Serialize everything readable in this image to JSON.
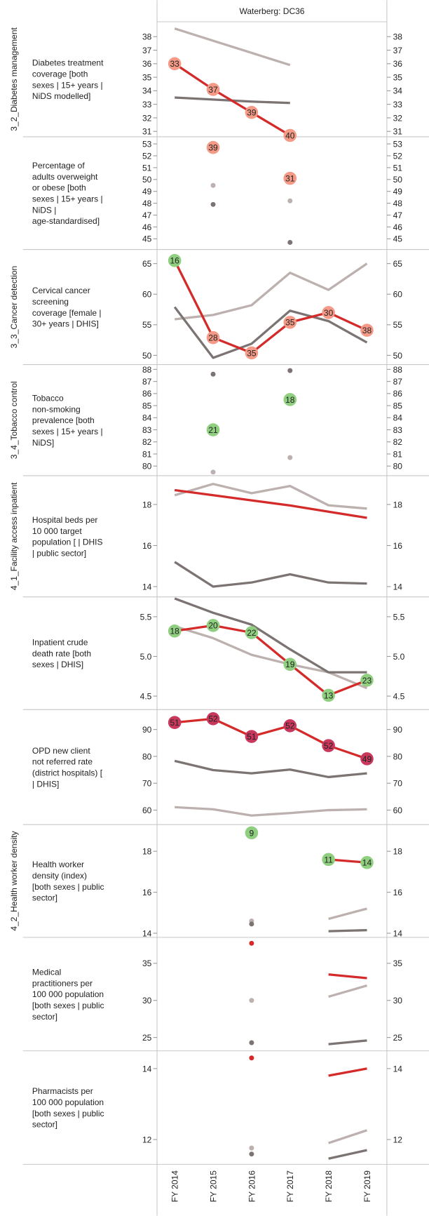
{
  "header": "Waterberg: DC36",
  "categories": [
    "FY 2014",
    "FY 2015",
    "FY 2016",
    "FY 2017",
    "FY 2018",
    "FY 2019"
  ],
  "chart_data": [
    {
      "type": "line",
      "group": "3_2_Diabetes management",
      "title": [
        "Diabetes treatment",
        "coverage [both",
        "sexes | 15+ years |",
        "NiDS modelled]"
      ],
      "ylim": [
        30.6,
        39.1
      ],
      "yticks": [
        31,
        32,
        33,
        34,
        35,
        36,
        37,
        38
      ],
      "series": [
        {
          "color": "#bcb1ae",
          "values": [
            38.6,
            37.7,
            36.8,
            35.9,
            null,
            null
          ]
        },
        {
          "color": "#7b7472",
          "values": [
            33.5,
            33.35,
            33.2,
            33.1,
            null,
            null
          ]
        },
        {
          "color": "#d42a2a",
          "values": [
            36.0,
            34.1,
            32.4,
            30.7,
            null,
            null
          ],
          "point_labels": [
            33,
            37,
            39,
            40,
            null,
            null
          ],
          "marker_colors": [
            "#f49a87",
            "#f49a87",
            "#f49a87",
            "#f49a87",
            null,
            null
          ]
        }
      ]
    },
    {
      "type": "line",
      "title": [
        "Percentage of",
        "adults overweight",
        "or obese [both",
        "sexes | 15+ years |",
        "NiDS |",
        "age-standardised]"
      ],
      "ylim": [
        44.1,
        53.6
      ],
      "yticks": [
        45,
        46,
        47,
        48,
        49,
        50,
        51,
        52,
        53
      ],
      "series": [
        {
          "color": "#bcb1ae",
          "values": [
            null,
            49.5,
            null,
            48.2,
            null,
            null
          ]
        },
        {
          "color": "#7b7472",
          "values": [
            null,
            47.9,
            null,
            44.7,
            null,
            null
          ]
        },
        {
          "color": "#d42a2a",
          "values": [
            null,
            52.7,
            null,
            50.1,
            null,
            null
          ],
          "point_labels": [
            null,
            39,
            null,
            31,
            null,
            null
          ],
          "marker_colors": [
            null,
            "#f49a87",
            null,
            "#f49a87",
            null,
            null
          ]
        }
      ]
    },
    {
      "type": "line",
      "group": "3_3_Cancer detection",
      "title": [
        "Cervical cancer",
        "screening",
        "coverage [female |",
        "30+ years | DHIS]"
      ],
      "ylim": [
        48.5,
        67.3
      ],
      "yticks": [
        50,
        55,
        60,
        65
      ],
      "series": [
        {
          "color": "#bcb1ae",
          "values": [
            55.9,
            56.6,
            58.2,
            63.5,
            60.7,
            65.0
          ]
        },
        {
          "color": "#7b7472",
          "values": [
            57.9,
            49.6,
            51.9,
            57.3,
            55.6,
            52.1
          ]
        },
        {
          "color": "#d42a2a",
          "values": [
            65.5,
            52.9,
            50.4,
            55.4,
            57.0,
            54.1
          ],
          "point_labels": [
            16,
            28,
            35,
            35,
            30,
            38
          ],
          "marker_colors": [
            "#8fcf7f",
            "#f49a87",
            "#f49a87",
            "#f49a87",
            "#f49a87",
            "#f49a87"
          ]
        }
      ]
    },
    {
      "type": "line",
      "group": "3_4_Tobacco control",
      "title": [
        "Tobacco",
        "non-smoking",
        "prevalence [both",
        "sexes | 15+ years |",
        "NiDS]"
      ],
      "ylim": [
        79.2,
        88.4
      ],
      "yticks": [
        80,
        81,
        82,
        83,
        84,
        85,
        86,
        87,
        88
      ],
      "series": [
        {
          "color": "#bcb1ae",
          "values": [
            null,
            79.5,
            null,
            80.7,
            null,
            null
          ]
        },
        {
          "color": "#7b7472",
          "values": [
            null,
            87.6,
            null,
            87.9,
            null,
            null
          ]
        },
        {
          "color": "#d42a2a",
          "values": [
            null,
            83.0,
            null,
            85.5,
            null,
            null
          ],
          "point_labels": [
            null,
            21,
            null,
            18,
            null,
            null
          ],
          "marker_colors": [
            null,
            "#8fcf7f",
            null,
            "#8fcf7f",
            null,
            null
          ]
        }
      ]
    },
    {
      "type": "line",
      "group": "4_1_Facility access inpatient",
      "title": [
        "Hospital beds per",
        "10 000 target",
        "population [ | DHIS",
        "| public sector]"
      ],
      "ylim": [
        13.5,
        19.4
      ],
      "yticks": [
        14,
        16,
        18
      ],
      "series": [
        {
          "color": "#bcb1ae",
          "values": [
            18.45,
            19.0,
            18.55,
            18.9,
            17.96,
            17.8
          ]
        },
        {
          "color": "#7b7472",
          "values": [
            15.2,
            14.0,
            14.2,
            14.6,
            14.2,
            14.15
          ]
        },
        {
          "color": "#d42a2a",
          "values": [
            18.7,
            18.45,
            18.2,
            17.95,
            17.65,
            17.35
          ]
        }
      ]
    },
    {
      "type": "line",
      "title": [
        "Inpatient crude",
        "death rate [both",
        "sexes | DHIS]"
      ],
      "ylim": [
        4.33,
        5.75
      ],
      "yticks": [
        4.5,
        {
          "value": 5,
          "label": "5.0"
        },
        5.5
      ],
      "series": [
        {
          "color": "#bcb1ae",
          "values": [
            5.38,
            5.23,
            5.02,
            4.9,
            4.8,
            4.6
          ]
        },
        {
          "color": "#7b7472",
          "values": [
            5.73,
            5.55,
            5.4,
            5.09,
            4.8,
            4.8
          ]
        },
        {
          "color": "#d42a2a",
          "values": [
            5.32,
            5.39,
            5.3,
            4.9,
            4.51,
            4.7
          ],
          "point_labels": [
            18,
            20,
            22,
            19,
            13,
            23
          ],
          "marker_colors": [
            "#8fcf7f",
            "#8fcf7f",
            "#8fcf7f",
            "#8fcf7f",
            "#8fcf7f",
            "#8fcf7f"
          ]
        }
      ]
    },
    {
      "type": "line",
      "title": [
        "OPD  new client",
        "not referred rate",
        "(district hospitals) [",
        "| DHIS]"
      ],
      "ylim": [
        54.6,
        97.4
      ],
      "yticks": [
        60,
        70,
        80,
        90
      ],
      "series": [
        {
          "color": "#bcb1ae",
          "values": [
            61.1,
            60.3,
            58.0,
            58.9,
            60.0,
            60.3
          ]
        },
        {
          "color": "#7b7472",
          "values": [
            78.3,
            74.9,
            73.7,
            75.1,
            72.3,
            73.7
          ]
        },
        {
          "color": "#d42a2a",
          "values": [
            92.6,
            94.0,
            87.4,
            91.4,
            84.0,
            79.1
          ],
          "point_labels": [
            51,
            52,
            51,
            52,
            52,
            49
          ],
          "marker_colors": [
            "#c8385c",
            "#c8385c",
            "#c8385c",
            "#c8385c",
            "#c8385c",
            "#c8385c"
          ]
        }
      ]
    },
    {
      "type": "line",
      "group": "4_2_Health worker density",
      "title": [
        "Health worker",
        "density (index)",
        "[both sexes | public",
        "sector]"
      ],
      "ylim": [
        13.8,
        19.3
      ],
      "yticks": [
        14,
        16,
        18
      ],
      "series": [
        {
          "color": "#bcb1ae",
          "values": [
            null,
            null,
            14.6,
            null,
            14.7,
            15.2
          ]
        },
        {
          "color": "#7b7472",
          "values": [
            null,
            null,
            14.45,
            null,
            14.1,
            14.15
          ]
        },
        {
          "color": "#d42a2a",
          "values": [
            null,
            null,
            18.9,
            null,
            17.6,
            17.45
          ],
          "point_labels": [
            null,
            null,
            9,
            null,
            11,
            14
          ],
          "marker_colors": [
            null,
            null,
            "#8fcf7f",
            null,
            "#8fcf7f",
            "#8fcf7f"
          ]
        }
      ]
    },
    {
      "type": "line",
      "title": [
        "Medical",
        "practitioners per",
        "100 000 population",
        "[both sexes | public",
        "sector]"
      ],
      "ylim": [
        23.2,
        38.5
      ],
      "yticks": [
        25,
        30,
        35
      ],
      "series": [
        {
          "color": "#bcb1ae",
          "values": [
            null,
            null,
            30.0,
            null,
            30.5,
            32.0
          ]
        },
        {
          "color": "#7b7472",
          "values": [
            null,
            null,
            24.3,
            null,
            24.1,
            24.6
          ]
        },
        {
          "color": "#d42a2a",
          "values": [
            null,
            null,
            37.7,
            null,
            33.5,
            33.0
          ]
        }
      ]
    },
    {
      "type": "line",
      "title": [
        "Pharmacists per",
        "100 000 population",
        "[both sexes | public",
        "sector]"
      ],
      "ylim": [
        11.3,
        14.5
      ],
      "yticks": [
        12,
        14
      ],
      "series": [
        {
          "color": "#bcb1ae",
          "values": [
            null,
            null,
            11.76,
            null,
            11.9,
            12.26
          ]
        },
        {
          "color": "#7b7472",
          "values": [
            null,
            null,
            11.59,
            null,
            11.46,
            11.7
          ]
        },
        {
          "color": "#d42a2a",
          "values": [
            null,
            null,
            14.3,
            null,
            13.8,
            14.0
          ]
        }
      ]
    }
  ]
}
